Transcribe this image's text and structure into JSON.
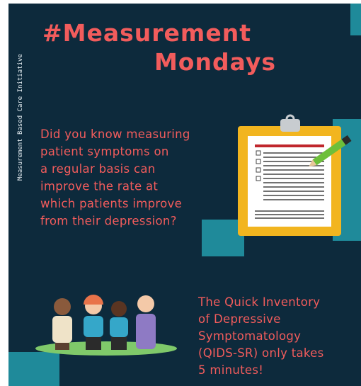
{
  "sidebar": {
    "text": "Measurement Based Care Initiative"
  },
  "header": {
    "title_lines": [
      "#Measurement",
      "Mondays"
    ]
  },
  "body": {
    "question_lines": [
      "Did you know measuring",
      "patient symptoms on",
      "a regular basis can",
      "improve the rate at",
      "which patients improve",
      "from their depression?"
    ],
    "fact_lines": [
      "The Quick Inventory",
      "of Depressive",
      "Symptomatology",
      "(QIDS-SR) only takes",
      "5 minutes!"
    ]
  }
}
